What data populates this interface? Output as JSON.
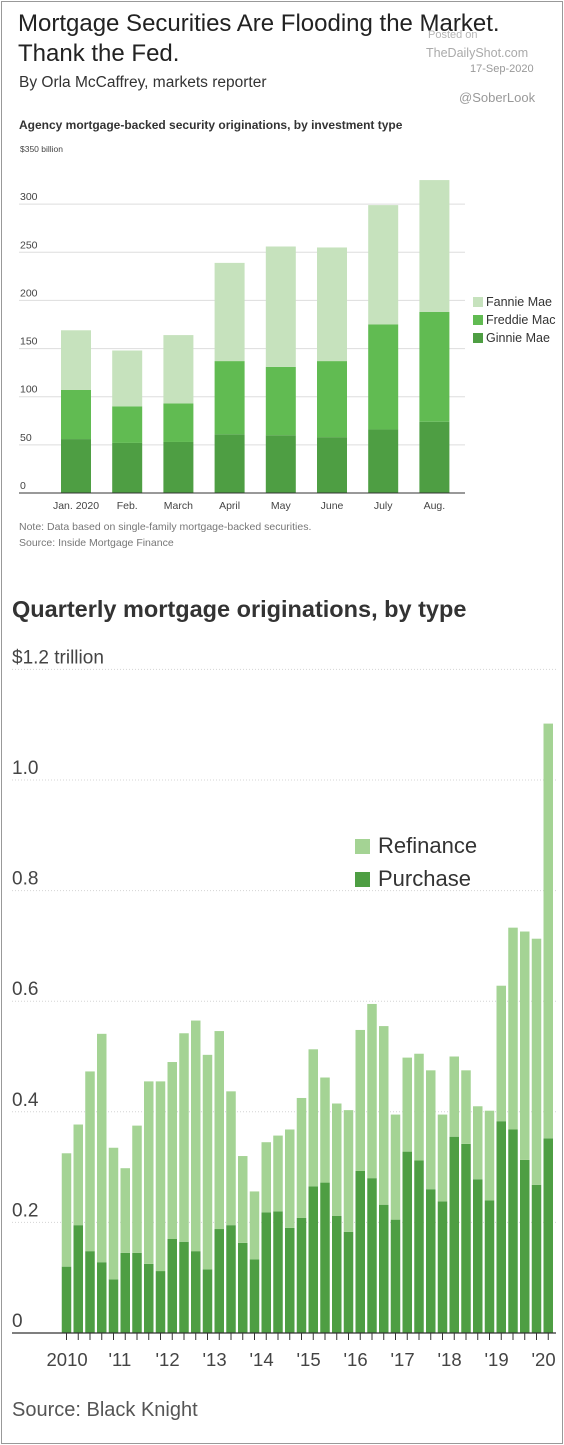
{
  "header": {
    "headline": "Mortgage Securities Are Flooding the Market. Thank the Fed.",
    "byline": "By Orla McCaffrey, markets reporter"
  },
  "watermark": {
    "posted": "Posted on",
    "site": "TheDailyShot.com",
    "date": "17-Sep-2020",
    "handle": "@SoberLook"
  },
  "colors": {
    "fannie": "#c6e2bd",
    "freddie": "#61bb52",
    "ginnie": "#4e9e43",
    "refinance": "#a4d394",
    "purchase": "#4e9e43"
  },
  "chart_data": [
    {
      "type": "bar",
      "stacked": true,
      "title": "Agency mortgage-backed security originations, by investment type",
      "unit_label": "$350 billion",
      "categories": [
        "Jan. 2020",
        "Feb.",
        "March",
        "April",
        "May",
        "June",
        "July",
        "Aug."
      ],
      "yticks": [
        {
          "value": 0,
          "label": "0"
        },
        {
          "value": 50,
          "label": "50"
        },
        {
          "value": 100,
          "label": "100"
        },
        {
          "value": 150,
          "label": "150"
        },
        {
          "value": 200,
          "label": "200"
        },
        {
          "value": 250,
          "label": "250"
        },
        {
          "value": 300,
          "label": "300"
        },
        {
          "value": 350,
          "label": "$350 billion"
        }
      ],
      "ylim": [
        0,
        350
      ],
      "grid": true,
      "legend_position": "right",
      "series": [
        {
          "name": "Ginnie Mae",
          "values": [
            56,
            52,
            53,
            61,
            60,
            58,
            66,
            74
          ]
        },
        {
          "name": "Freddie Mac",
          "values": [
            51,
            38,
            40,
            76,
            71,
            79,
            109,
            114
          ]
        },
        {
          "name": "Fannie Mae",
          "values": [
            62,
            58,
            71,
            102,
            125,
            118,
            124,
            137
          ]
        }
      ],
      "legend": [
        "Fannie Mae",
        "Freddie Mac",
        "Ginnie Mae"
      ],
      "note": "Note: Data based on single-family mortgage-backed securities.",
      "source": "Source: Inside Mortgage Finance"
    },
    {
      "type": "bar",
      "stacked": true,
      "title": "Quarterly mortgage originations, by type",
      "unit_label": "$1.2 trillion",
      "categories": [
        "2010 Q1",
        "2010 Q2",
        "2010 Q3",
        "2010 Q4",
        "2011 Q1",
        "2011 Q2",
        "2011 Q3",
        "2011 Q4",
        "2012 Q1",
        "2012 Q2",
        "2012 Q3",
        "2012 Q4",
        "2013 Q1",
        "2013 Q2",
        "2013 Q3",
        "2013 Q4",
        "2014 Q1",
        "2014 Q2",
        "2014 Q3",
        "2014 Q4",
        "2015 Q1",
        "2015 Q2",
        "2015 Q3",
        "2015 Q4",
        "2016 Q1",
        "2016 Q2",
        "2016 Q3",
        "2016 Q4",
        "2017 Q1",
        "2017 Q2",
        "2017 Q3",
        "2017 Q4",
        "2018 Q1",
        "2018 Q2",
        "2018 Q3",
        "2018 Q4",
        "2019 Q1",
        "2019 Q2",
        "2019 Q3",
        "2019 Q4",
        "2020 Q1",
        "2020 Q2"
      ],
      "year_labels": [
        "2010",
        "'11",
        "'12",
        "'13",
        "'14",
        "'15",
        "'16",
        "'17",
        "'18",
        "'19",
        "'20"
      ],
      "yticks": [
        {
          "value": 0,
          "label": "0"
        },
        {
          "value": 0.2,
          "label": "0.2"
        },
        {
          "value": 0.4,
          "label": "0.4"
        },
        {
          "value": 0.6,
          "label": "0.6"
        },
        {
          "value": 0.8,
          "label": "0.8"
        },
        {
          "value": 1.0,
          "label": "1.0"
        },
        {
          "value": 1.2,
          "label": "$1.2 trillion"
        }
      ],
      "ylim": [
        0,
        1.2
      ],
      "grid": true,
      "legend_position": "center-right",
      "series": [
        {
          "name": "Purchase",
          "values": [
            0.12,
            0.195,
            0.148,
            0.128,
            0.097,
            0.145,
            0.145,
            0.125,
            0.112,
            0.17,
            0.165,
            0.148,
            0.115,
            0.188,
            0.195,
            0.163,
            0.133,
            0.218,
            0.22,
            0.19,
            0.208,
            0.265,
            0.272,
            0.212,
            0.183,
            0.293,
            0.28,
            0.232,
            0.205,
            0.328,
            0.312,
            0.26,
            0.238,
            0.355,
            0.342,
            0.278,
            0.24,
            0.383,
            0.368,
            0.313,
            0.268,
            0.352
          ]
        },
        {
          "name": "Refinance",
          "values": [
            0.205,
            0.182,
            0.325,
            0.413,
            0.238,
            0.153,
            0.23,
            0.33,
            0.343,
            0.32,
            0.377,
            0.417,
            0.388,
            0.358,
            0.242,
            0.157,
            0.123,
            0.127,
            0.137,
            0.178,
            0.217,
            0.248,
            0.19,
            0.203,
            0.22,
            0.255,
            0.315,
            0.323,
            0.19,
            0.17,
            0.193,
            0.215,
            0.157,
            0.145,
            0.133,
            0.132,
            0.162,
            0.245,
            0.365,
            0.413,
            0.445,
            0.75
          ]
        }
      ],
      "legend": [
        "Refinance",
        "Purchase"
      ],
      "source": "Source: Black Knight"
    }
  ]
}
